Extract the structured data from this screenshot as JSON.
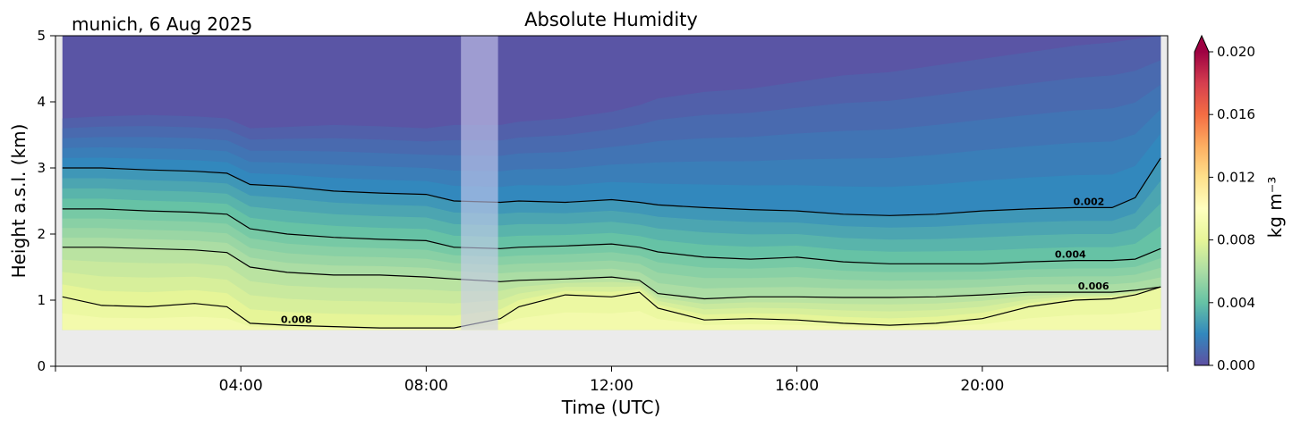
{
  "chart_data": {
    "type": "heatmap",
    "title": "Absolute Humidity",
    "subtitle": "munich, 6 Aug 2025",
    "xlabel": "Time (UTC)",
    "ylabel": "Height a.s.l. (km)",
    "xlim": [
      0,
      24
    ],
    "ylim": [
      0,
      5
    ],
    "x_ticks": [
      {
        "value": 4,
        "label": "04:00"
      },
      {
        "value": 8,
        "label": "08:00"
      },
      {
        "value": 12,
        "label": "12:00"
      },
      {
        "value": 16,
        "label": "16:00"
      },
      {
        "value": 20,
        "label": "20:00"
      }
    ],
    "y_ticks": [
      {
        "value": 0,
        "label": "0"
      },
      {
        "value": 1,
        "label": "1"
      },
      {
        "value": 2,
        "label": "2"
      },
      {
        "value": 3,
        "label": "3"
      },
      {
        "value": 4,
        "label": "4"
      },
      {
        "value": 5,
        "label": "5"
      }
    ],
    "colorbar": {
      "label": "kg m⁻³",
      "min": 0.0,
      "max": 0.02,
      "extend": "max",
      "ticks": [
        {
          "value": 0.0,
          "label": "0.000"
        },
        {
          "value": 0.004,
          "label": "0.004"
        },
        {
          "value": 0.008,
          "label": "0.008"
        },
        {
          "value": 0.012,
          "label": "0.012"
        },
        {
          "value": 0.016,
          "label": "0.016"
        },
        {
          "value": 0.02,
          "label": "0.020"
        }
      ],
      "colormap": "Spectral_r",
      "colors": [
        "#5e4fa2",
        "#3288bd",
        "#66c2a5",
        "#abdda4",
        "#e6f598",
        "#ffffbf",
        "#fee08b",
        "#fdae61",
        "#f46d43",
        "#d53e4f",
        "#9e0142"
      ]
    },
    "data_start_time": 0.15,
    "data_end_time": 23.85,
    "ground_height_km": 0.55,
    "missing_data_band": {
      "start_time": 8.75,
      "end_time": 9.55,
      "color": "#ccccee"
    },
    "background_color": "#ebebeb",
    "times": [
      0.15,
      1,
      2,
      3,
      3.7,
      4.2,
      5,
      6,
      7,
      8,
      8.6,
      9.6,
      10,
      11,
      12,
      12.6,
      13,
      14,
      15,
      16,
      17,
      18,
      19,
      20,
      21,
      22,
      22.8,
      23.3,
      23.85
    ],
    "contours": [
      {
        "level": 0.002,
        "label": "0.002",
        "label_at": 22.3,
        "heights_km": [
          3.0,
          3.0,
          2.97,
          2.95,
          2.92,
          2.75,
          2.72,
          2.65,
          2.62,
          2.6,
          2.5,
          2.48,
          2.5,
          2.48,
          2.52,
          2.48,
          2.44,
          2.4,
          2.37,
          2.35,
          2.3,
          2.28,
          2.3,
          2.35,
          2.38,
          2.4,
          2.4,
          2.55,
          3.15
        ]
      },
      {
        "level": 0.004,
        "label": "0.004",
        "label_at": 21.9,
        "heights_km": [
          2.38,
          2.38,
          2.35,
          2.33,
          2.3,
          2.08,
          2.0,
          1.95,
          1.92,
          1.9,
          1.8,
          1.78,
          1.8,
          1.82,
          1.85,
          1.8,
          1.73,
          1.65,
          1.62,
          1.65,
          1.58,
          1.55,
          1.55,
          1.55,
          1.58,
          1.6,
          1.6,
          1.62,
          1.78
        ]
      },
      {
        "level": 0.006,
        "label": "0.006",
        "label_at": 22.4,
        "heights_km": [
          1.8,
          1.8,
          1.78,
          1.76,
          1.72,
          1.5,
          1.42,
          1.38,
          1.38,
          1.35,
          1.32,
          1.28,
          1.3,
          1.32,
          1.35,
          1.3,
          1.1,
          1.02,
          1.05,
          1.05,
          1.04,
          1.04,
          1.05,
          1.08,
          1.12,
          1.12,
          1.12,
          1.15,
          1.2
        ]
      },
      {
        "level": 0.008,
        "label": "0.008",
        "label_at": 5.2,
        "heights_km": [
          1.05,
          0.92,
          0.9,
          0.95,
          0.9,
          0.65,
          0.62,
          0.6,
          0.58,
          0.58,
          0.58,
          0.72,
          0.9,
          1.08,
          1.05,
          1.12,
          0.88,
          0.7,
          0.72,
          0.7,
          0.65,
          0.62,
          0.65,
          0.72,
          0.9,
          1.0,
          1.02,
          1.08,
          1.2
        ]
      }
    ],
    "dry_top_boundary_km": [
      3.75,
      3.78,
      3.8,
      3.78,
      3.75,
      3.6,
      3.62,
      3.65,
      3.63,
      3.6,
      3.65,
      3.65,
      3.7,
      3.75,
      3.85,
      3.95,
      4.05,
      4.15,
      4.2,
      4.3,
      4.4,
      4.45,
      4.55,
      4.65,
      4.75,
      4.85,
      4.9,
      4.95,
      5.0
    ]
  }
}
